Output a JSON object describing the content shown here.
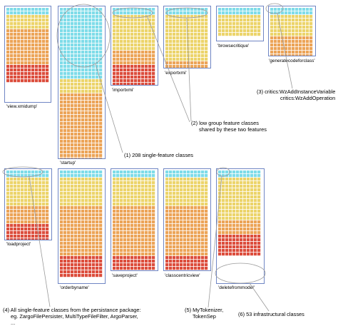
{
  "colors": {
    "cyan": "#7fdce9",
    "yellow": "#ecd46a",
    "orange": "#eca457",
    "red": "#dc4d3c",
    "frame": "#6f86c4",
    "ring": "#9a9a9a"
  },
  "panels": [
    {
      "id": "viewxmidump",
      "label": "'view.xmidump'",
      "rows": {
        "cyan": 2,
        "yellow": 4,
        "orange": 10,
        "red": 5
      }
    },
    {
      "id": "startup",
      "label": "'startup'",
      "rows": {
        "cyan": 20,
        "yellow": 4,
        "orange": 20,
        "red": 3
      }
    },
    {
      "id": "importxmi",
      "label": "'importxmi'",
      "rows": {
        "cyan": 2,
        "yellow": 10,
        "orange": 4,
        "red": 6
      }
    },
    {
      "id": "exportxmi",
      "label": "'exportxmi'",
      "rows": {
        "cyan": 2,
        "yellow": 13,
        "orange": 2,
        "red": 6
      }
    },
    {
      "id": "browsecritique",
      "label": "'browsecritique'",
      "rows": {
        "cyan": 2,
        "yellow": 6,
        "orange": 0,
        "red": 0
      }
    },
    {
      "id": "generatecodeforclass",
      "label": "'generatecodeforclass'",
      "rows": {
        "cyan": 2,
        "yellow": 6,
        "orange": 10,
        "red": 5
      }
    },
    {
      "id": "loadproject",
      "label": "'loadproject'",
      "rows": {
        "cyan": 2,
        "yellow": 8,
        "orange": 5,
        "red": 6
      }
    },
    {
      "id": "orderbyname",
      "label": "'orderbyname'",
      "rows": {
        "cyan": 2,
        "yellow": 8,
        "orange": 14,
        "red": 6
      }
    },
    {
      "id": "saveproject",
      "label": "'saveproject'",
      "rows": {
        "cyan": 2,
        "yellow": 8,
        "orange": 14,
        "red": 6
      }
    },
    {
      "id": "classcentricview",
      "label": "'classcentricview'",
      "rows": {
        "cyan": 2,
        "yellow": 8,
        "orange": 14,
        "red": 6
      }
    },
    {
      "id": "deletefrommodel",
      "label": "'deletefrommodel'",
      "rows": {
        "cyan": 2,
        "yellow": 12,
        "orange": 4,
        "red": 6
      }
    }
  ],
  "annotations": [
    {
      "id": "a1",
      "text": "(1) 208 single-feature classes"
    },
    {
      "id": "a2",
      "lines": [
        "(2) low group feature classes",
        "shared by these two features"
      ]
    },
    {
      "id": "a3",
      "lines": [
        "(3) critics:WzAddInstanceVariable",
        "critics:WzAddOperation"
      ]
    },
    {
      "id": "a4",
      "lines": [
        "(4) All single-feature classes from the persistance package:",
        "eg. ZargoFilePersister, MultiTypeFileFilter, ArgoParser,",
        "..."
      ]
    },
    {
      "id": "a5",
      "lines": [
        "(5) MyTokenizer,",
        "TokenSep"
      ]
    },
    {
      "id": "a6",
      "text": "(6) 53 infrastructural classes"
    }
  ]
}
